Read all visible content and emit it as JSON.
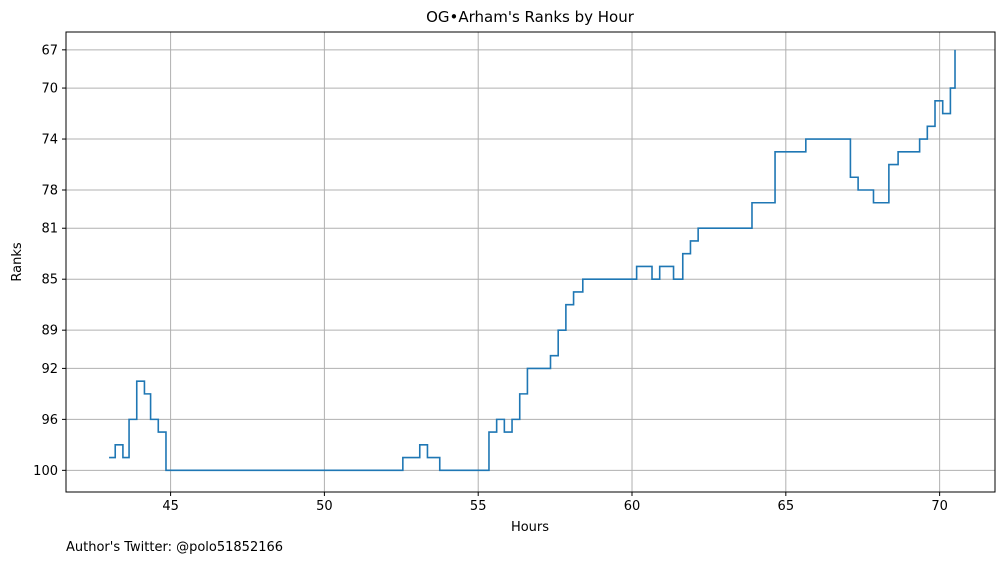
{
  "chart_data": {
    "type": "line",
    "title": "OG•Arham's Ranks by Hour",
    "xlabel": "Hours",
    "ylabel": "Ranks",
    "footer": "Author's Twitter: @polo51852166",
    "xlim": [
      41.6,
      71.8
    ],
    "ylim": [
      101.7,
      65.6
    ],
    "y_inverted": true,
    "x_ticks": [
      45,
      50,
      55,
      60,
      65,
      70
    ],
    "y_ticks": [
      67,
      70,
      74,
      78,
      81,
      85,
      89,
      92,
      96,
      100
    ],
    "grid": true,
    "line_color": "#1f77b4",
    "series": [
      {
        "step": "post",
        "x": [
          43.0,
          43.2,
          43.45,
          43.65,
          43.9,
          44.15,
          44.35,
          44.6,
          44.85,
          52.55,
          53.1,
          53.35,
          53.75,
          55.35,
          55.6,
          55.85,
          56.1,
          56.35,
          56.6,
          57.35,
          57.6,
          57.85,
          58.1,
          58.4,
          58.65,
          60.15,
          60.65,
          60.9,
          61.35,
          61.65,
          61.9,
          62.15,
          63.9,
          64.65,
          65.65,
          66.85,
          67.1,
          67.35,
          67.85,
          68.35,
          68.65,
          68.9,
          69.35,
          69.6,
          69.85,
          70.1,
          70.35,
          70.5
        ],
        "y": [
          99,
          98,
          99,
          96,
          93,
          94,
          96,
          97,
          100,
          99,
          98,
          99,
          100,
          97,
          96,
          97,
          96,
          94,
          92,
          91,
          89,
          87,
          86,
          85,
          85,
          84,
          85,
          84,
          85,
          83,
          82,
          81,
          79,
          75,
          74,
          74,
          77,
          78,
          79,
          76,
          75,
          75,
          74,
          73,
          71,
          72,
          70,
          67
        ]
      }
    ]
  }
}
